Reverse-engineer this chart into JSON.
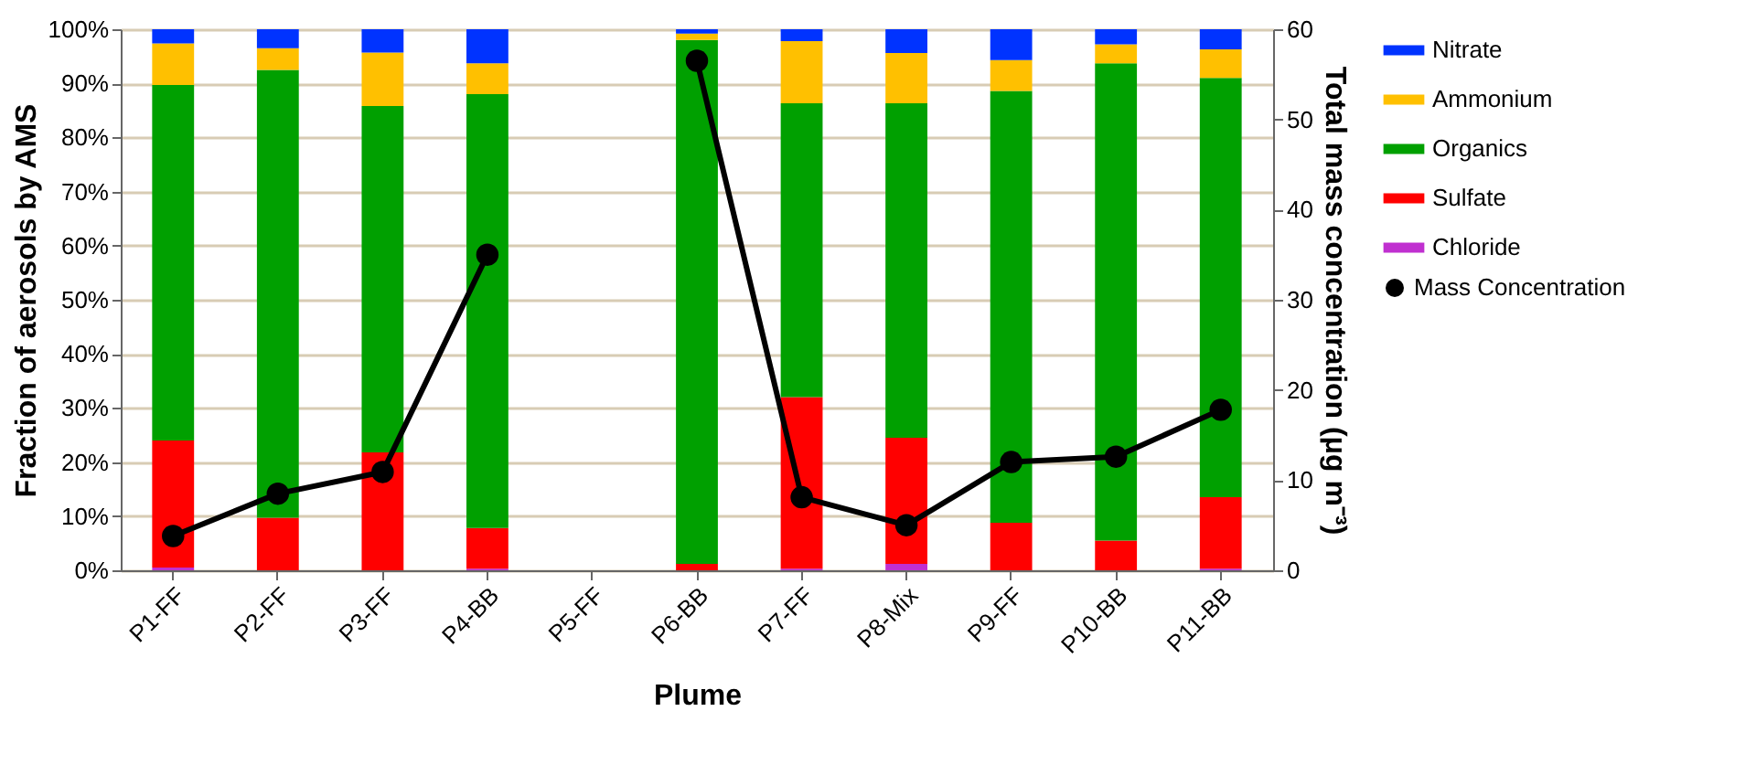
{
  "chart_data": {
    "type": "bar",
    "stacked": true,
    "xlabel": "Plume",
    "ylabel": "Fraction of aerosols by AMS",
    "y2label": "Total mass concentration (μg m⁻³)",
    "categories": [
      "P1-FF",
      "P2-FF",
      "P3-FF",
      "P4-BB",
      "P5-FF",
      "P6-BB",
      "P7-FF",
      "P8-Mix",
      "P9-FF",
      "P10-BB",
      "P11-BB"
    ],
    "ylim": [
      0,
      100
    ],
    "yticks": [
      {
        "value": 0,
        "label": "0%"
      },
      {
        "value": 10,
        "label": "10%"
      },
      {
        "value": 20,
        "label": "20%"
      },
      {
        "value": 30,
        "label": "30%"
      },
      {
        "value": 40,
        "label": "40%"
      },
      {
        "value": 50,
        "label": "50%"
      },
      {
        "value": 60,
        "label": "60%"
      },
      {
        "value": 70,
        "label": "70%"
      },
      {
        "value": 80,
        "label": "80%"
      },
      {
        "value": 90,
        "label": "90%"
      },
      {
        "value": 100,
        "label": "100%"
      }
    ],
    "y2lim": [
      0,
      60
    ],
    "y2ticks": [
      0,
      10,
      20,
      30,
      40,
      50,
      60
    ],
    "grid": "y",
    "legend": "right",
    "series": [
      {
        "name": "Chloride",
        "color": "#c030d0",
        "values": [
          0.5,
          0,
          0,
          0.3,
          null,
          0,
          0.3,
          1.2,
          0,
          0,
          0.3
        ]
      },
      {
        "name": "Sulfate",
        "color": "#ff0000",
        "values": [
          23.5,
          9.7,
          21.8,
          7.5,
          null,
          1.2,
          31.7,
          23.3,
          8.8,
          5.5,
          13.2
        ]
      },
      {
        "name": "Organics",
        "color": "#00a000",
        "values": [
          65.7,
          82.8,
          64.0,
          80.2,
          null,
          96.8,
          54.3,
          61.8,
          79.8,
          88.2,
          77.5
        ]
      },
      {
        "name": "Ammonium",
        "color": "#ffc000",
        "values": [
          7.7,
          4.0,
          9.9,
          5.7,
          null,
          1.2,
          11.5,
          9.3,
          5.7,
          3.5,
          5.3
        ]
      },
      {
        "name": "Nitrate",
        "color": "#0033ff",
        "values": [
          2.6,
          3.5,
          4.3,
          6.3,
          null,
          0.8,
          2.2,
          4.4,
          5.7,
          2.8,
          3.7
        ]
      },
      {
        "name": "Mass Concentration",
        "color": "#000000",
        "type": "line",
        "axis": "y2",
        "marker": "circle",
        "values": [
          3.8,
          8.5,
          10.9,
          35.0,
          null,
          56.5,
          8.1,
          5.0,
          12.0,
          12.6,
          17.8
        ]
      }
    ]
  }
}
